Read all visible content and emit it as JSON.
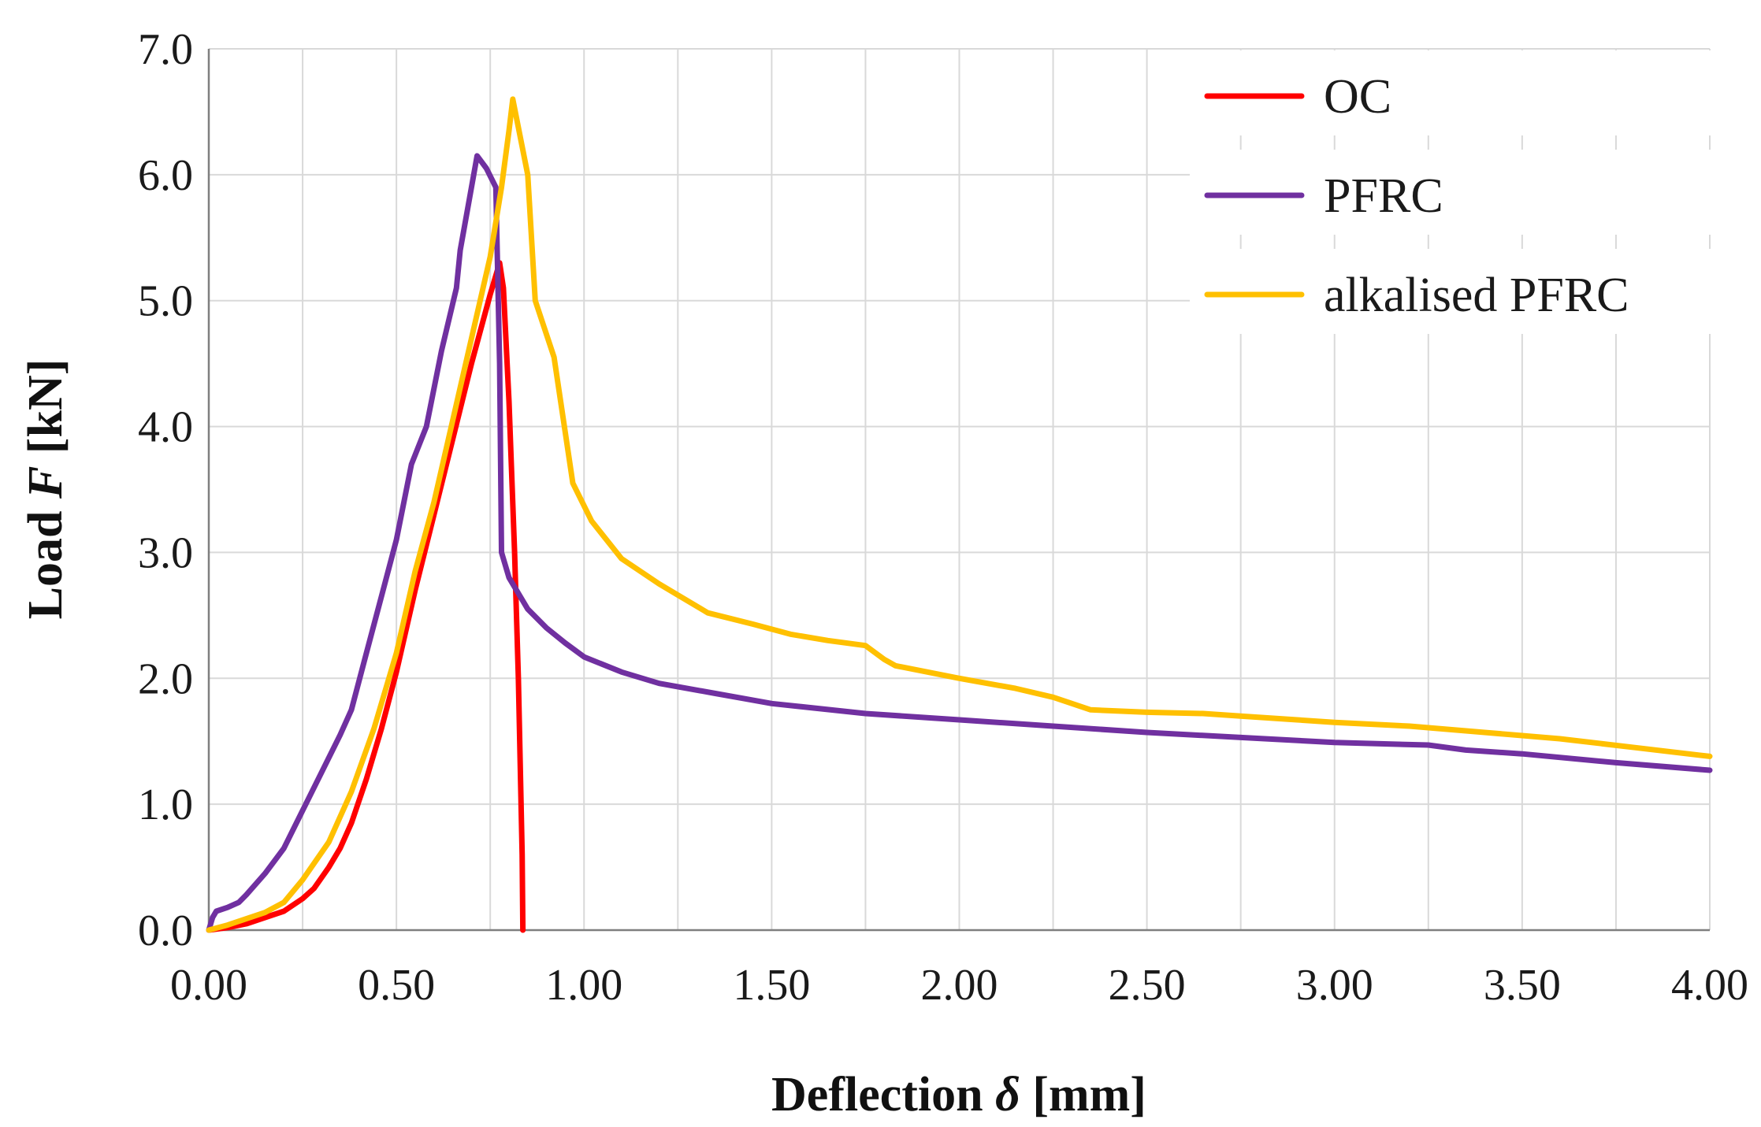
{
  "chart_data": {
    "type": "line",
    "title": "",
    "xlabel": {
      "prefix": "Deflection ",
      "symbol": "δ",
      "suffix": " [mm]"
    },
    "ylabel": {
      "prefix": "Load ",
      "symbol": "F",
      "suffix": " [kN]"
    },
    "xlim": [
      0,
      4
    ],
    "ylim": [
      0,
      7
    ],
    "x_ticks": [
      0,
      0.5,
      1,
      1.5,
      2,
      2.5,
      3,
      3.5,
      4
    ],
    "x_tick_labels": [
      "0.00",
      "0.50",
      "1.00",
      "1.50",
      "2.00",
      "2.50",
      "3.00",
      "3.50",
      "4.00"
    ],
    "x_minor_grid": [
      0.25,
      0.75,
      1.25,
      1.75,
      2.25,
      2.75,
      3.25,
      3.75
    ],
    "y_ticks": [
      0,
      1,
      2,
      3,
      4,
      5,
      6,
      7
    ],
    "y_tick_labels": [
      "0.0",
      "1.0",
      "2.0",
      "3.0",
      "4.0",
      "5.0",
      "6.0",
      "7.0"
    ],
    "grid": true,
    "legend_position": "top-right",
    "series": [
      {
        "name": "OC",
        "color": "#ff0000",
        "points": [
          [
            0,
            0
          ],
          [
            0.05,
            0.02
          ],
          [
            0.1,
            0.05
          ],
          [
            0.15,
            0.1
          ],
          [
            0.2,
            0.15
          ],
          [
            0.25,
            0.25
          ],
          [
            0.28,
            0.33
          ],
          [
            0.32,
            0.5
          ],
          [
            0.35,
            0.65
          ],
          [
            0.38,
            0.85
          ],
          [
            0.42,
            1.2
          ],
          [
            0.46,
            1.6
          ],
          [
            0.5,
            2.05
          ],
          [
            0.55,
            2.7
          ],
          [
            0.6,
            3.3
          ],
          [
            0.65,
            3.9
          ],
          [
            0.7,
            4.5
          ],
          [
            0.75,
            5.05
          ],
          [
            0.775,
            5.3
          ],
          [
            0.785,
            5.1
          ],
          [
            0.8,
            4.2
          ],
          [
            0.815,
            3.0
          ],
          [
            0.825,
            2.0
          ],
          [
            0.83,
            1.3
          ],
          [
            0.835,
            0.6
          ],
          [
            0.837,
            0
          ]
        ]
      },
      {
        "name": "PFRC",
        "color": "#7030a0",
        "points": [
          [
            0,
            0
          ],
          [
            0.01,
            0.1
          ],
          [
            0.02,
            0.15
          ],
          [
            0.05,
            0.18
          ],
          [
            0.08,
            0.22
          ],
          [
            0.1,
            0.28
          ],
          [
            0.15,
            0.45
          ],
          [
            0.2,
            0.65
          ],
          [
            0.25,
            0.95
          ],
          [
            0.3,
            1.25
          ],
          [
            0.35,
            1.55
          ],
          [
            0.38,
            1.75
          ],
          [
            0.42,
            2.2
          ],
          [
            0.46,
            2.65
          ],
          [
            0.5,
            3.1
          ],
          [
            0.54,
            3.7
          ],
          [
            0.58,
            4.0
          ],
          [
            0.62,
            4.6
          ],
          [
            0.66,
            5.1
          ],
          [
            0.67,
            5.4
          ],
          [
            0.7,
            5.9
          ],
          [
            0.715,
            6.15
          ],
          [
            0.74,
            6.05
          ],
          [
            0.765,
            5.9
          ],
          [
            0.775,
            4.5
          ],
          [
            0.78,
            3.0
          ],
          [
            0.8,
            2.8
          ],
          [
            0.85,
            2.55
          ],
          [
            0.9,
            2.4
          ],
          [
            0.95,
            2.28
          ],
          [
            1.0,
            2.17
          ],
          [
            1.1,
            2.05
          ],
          [
            1.2,
            1.96
          ],
          [
            1.35,
            1.88
          ],
          [
            1.5,
            1.8
          ],
          [
            1.75,
            1.72
          ],
          [
            2.0,
            1.67
          ],
          [
            2.25,
            1.62
          ],
          [
            2.5,
            1.57
          ],
          [
            2.75,
            1.53
          ],
          [
            3.0,
            1.49
          ],
          [
            3.25,
            1.47
          ],
          [
            3.35,
            1.43
          ],
          [
            3.5,
            1.4
          ],
          [
            3.75,
            1.33
          ],
          [
            4.0,
            1.27
          ]
        ]
      },
      {
        "name": "alkalised PFRC",
        "color": "#ffc000",
        "points": [
          [
            0,
            0
          ],
          [
            0.05,
            0.04
          ],
          [
            0.1,
            0.09
          ],
          [
            0.15,
            0.14
          ],
          [
            0.2,
            0.22
          ],
          [
            0.25,
            0.4
          ],
          [
            0.32,
            0.7
          ],
          [
            0.38,
            1.1
          ],
          [
            0.44,
            1.6
          ],
          [
            0.5,
            2.2
          ],
          [
            0.55,
            2.85
          ],
          [
            0.6,
            3.4
          ],
          [
            0.65,
            4.05
          ],
          [
            0.7,
            4.7
          ],
          [
            0.75,
            5.35
          ],
          [
            0.78,
            5.9
          ],
          [
            0.8,
            6.35
          ],
          [
            0.81,
            6.6
          ],
          [
            0.85,
            6.0
          ],
          [
            0.87,
            5.0
          ],
          [
            0.92,
            4.55
          ],
          [
            0.97,
            3.55
          ],
          [
            1.02,
            3.25
          ],
          [
            1.1,
            2.95
          ],
          [
            1.2,
            2.75
          ],
          [
            1.33,
            2.52
          ],
          [
            1.45,
            2.43
          ],
          [
            1.55,
            2.35
          ],
          [
            1.65,
            2.3
          ],
          [
            1.75,
            2.26
          ],
          [
            1.8,
            2.15
          ],
          [
            1.83,
            2.1
          ],
          [
            2.0,
            2.0
          ],
          [
            2.15,
            1.92
          ],
          [
            2.25,
            1.85
          ],
          [
            2.35,
            1.75
          ],
          [
            2.5,
            1.73
          ],
          [
            2.65,
            1.72
          ],
          [
            2.75,
            1.7
          ],
          [
            2.9,
            1.67
          ],
          [
            3.0,
            1.65
          ],
          [
            3.2,
            1.62
          ],
          [
            3.4,
            1.57
          ],
          [
            3.6,
            1.52
          ],
          [
            3.8,
            1.45
          ],
          [
            4.0,
            1.38
          ]
        ]
      }
    ]
  }
}
